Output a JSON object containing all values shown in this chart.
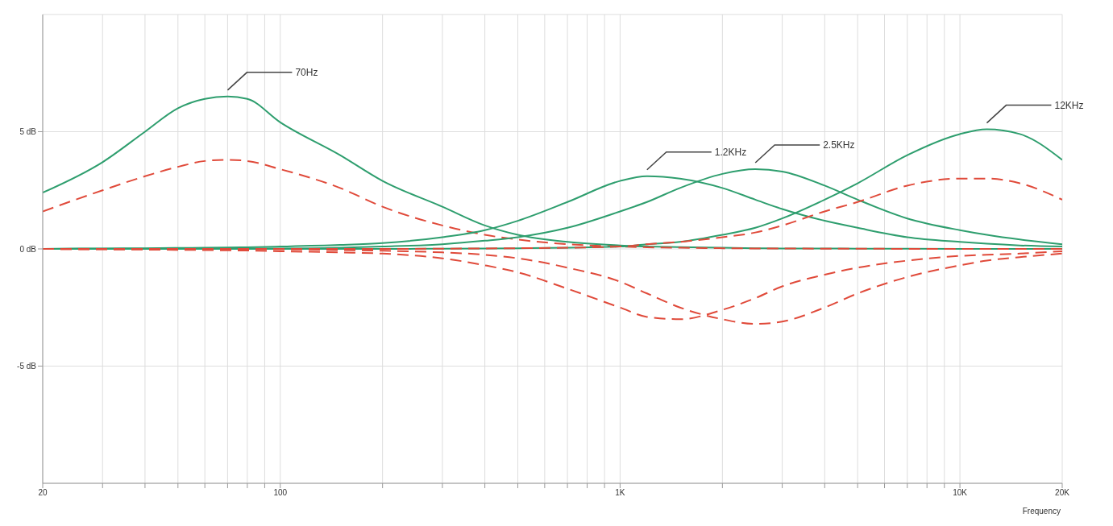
{
  "chart_data": {
    "type": "line",
    "xlabel": "Frequency",
    "log": "x",
    "grid": true,
    "marker": "none",
    "x": [
      20,
      30,
      40,
      50,
      60,
      70,
      80,
      100,
      150,
      200,
      300,
      400,
      500,
      700,
      1000,
      1200,
      1500,
      2000,
      2500,
      3000,
      4000,
      5000,
      7000,
      10000,
      12000,
      15000,
      20000
    ],
    "xlim": [
      20,
      20000
    ],
    "xticks": [
      {
        "value": 20,
        "label": "20"
      },
      {
        "value": 30,
        "label": null
      },
      {
        "value": 40,
        "label": null
      },
      {
        "value": 50,
        "label": null
      },
      {
        "value": 60,
        "label": null
      },
      {
        "value": 70,
        "label": null
      },
      {
        "value": 80,
        "label": null
      },
      {
        "value": 90,
        "label": null
      },
      {
        "value": 100,
        "label": "100"
      },
      {
        "value": 200,
        "label": null
      },
      {
        "value": 300,
        "label": null
      },
      {
        "value": 400,
        "label": null
      },
      {
        "value": 500,
        "label": null
      },
      {
        "value": 600,
        "label": null
      },
      {
        "value": 700,
        "label": null
      },
      {
        "value": 800,
        "label": null
      },
      {
        "value": 900,
        "label": null
      },
      {
        "value": 1000,
        "label": "1K"
      },
      {
        "value": 2000,
        "label": null
      },
      {
        "value": 3000,
        "label": null
      },
      {
        "value": 4000,
        "label": null
      },
      {
        "value": 5000,
        "label": null
      },
      {
        "value": 6000,
        "label": null
      },
      {
        "value": 7000,
        "label": null
      },
      {
        "value": 8000,
        "label": null
      },
      {
        "value": 9000,
        "label": null
      },
      {
        "value": 10000,
        "label": "10K"
      },
      {
        "value": 20000,
        "label": "20K"
      }
    ],
    "ylim": [
      -10,
      10
    ],
    "yticks": [
      {
        "value": -5,
        "label": "-5 dB"
      },
      {
        "value": 0,
        "label": "0 dB"
      },
      {
        "value": 5,
        "label": "5 dB"
      }
    ],
    "series": [
      {
        "color": "#2e9e6e",
        "line_style": "solid",
        "values": [
          2.4,
          3.7,
          5.0,
          6.0,
          6.4,
          6.5,
          6.4,
          5.4,
          4.0,
          2.9,
          1.8,
          1.0,
          0.6,
          0.3,
          0.15,
          0.1,
          0.08,
          0.05,
          0.03,
          0.02,
          0.02,
          0.01,
          0.01,
          0,
          0,
          0,
          0
        ]
      },
      {
        "color": "#e04a3a",
        "line_style": "dashed",
        "values": [
          1.6,
          2.5,
          3.1,
          3.5,
          3.75,
          3.8,
          3.75,
          3.4,
          2.6,
          1.8,
          1.0,
          0.6,
          0.4,
          0.2,
          0.1,
          0.07,
          0.05,
          0.03,
          0.02,
          0.02,
          0.01,
          0.01,
          0,
          0,
          0,
          0,
          0
        ]
      },
      {
        "color": "#2e9e6e",
        "line_style": "solid",
        "values": [
          0,
          0.02,
          0.03,
          0.04,
          0.05,
          0.06,
          0.07,
          0.1,
          0.17,
          0.25,
          0.5,
          0.8,
          1.2,
          2.0,
          2.9,
          3.1,
          3.0,
          2.6,
          2.1,
          1.7,
          1.2,
          0.9,
          0.5,
          0.3,
          0.22,
          0.15,
          0.1
        ]
      },
      {
        "color": "#e04a3a",
        "line_style": "dashed",
        "values": [
          0,
          -0.02,
          -0.03,
          -0.04,
          -0.05,
          -0.06,
          -0.07,
          -0.1,
          -0.15,
          -0.2,
          -0.4,
          -0.7,
          -1.0,
          -1.7,
          -2.5,
          -2.9,
          -3.0,
          -2.6,
          -2.1,
          -1.6,
          -1.1,
          -0.8,
          -0.5,
          -0.3,
          -0.25,
          -0.2,
          -0.1
        ]
      },
      {
        "color": "#2e9e6e",
        "line_style": "solid",
        "values": [
          0,
          0.01,
          0.01,
          0.02,
          0.02,
          0.02,
          0.02,
          0.02,
          0.05,
          0.1,
          0.2,
          0.35,
          0.5,
          0.9,
          1.6,
          2.0,
          2.6,
          3.2,
          3.4,
          3.3,
          2.7,
          2.1,
          1.3,
          0.8,
          0.6,
          0.4,
          0.2
        ]
      },
      {
        "color": "#e04a3a",
        "line_style": "dashed",
        "values": [
          0,
          -0.01,
          -0.01,
          -0.02,
          -0.02,
          -0.02,
          -0.02,
          -0.02,
          -0.05,
          -0.08,
          -0.15,
          -0.25,
          -0.4,
          -0.8,
          -1.4,
          -1.9,
          -2.5,
          -3.0,
          -3.2,
          -3.1,
          -2.5,
          -1.9,
          -1.2,
          -0.7,
          -0.5,
          -0.35,
          -0.2
        ]
      },
      {
        "color": "#2e9e6e",
        "line_style": "solid",
        "values": [
          0,
          0,
          0,
          0,
          0,
          0,
          0,
          0,
          0,
          0,
          0.01,
          0.02,
          0.03,
          0.05,
          0.1,
          0.2,
          0.3,
          0.6,
          0.9,
          1.3,
          2.1,
          2.8,
          4.0,
          4.9,
          5.1,
          4.9,
          3.8
        ]
      },
      {
        "color": "#e04a3a",
        "line_style": "dashed",
        "values": [
          0,
          0,
          0,
          0,
          0,
          0,
          0,
          0,
          0,
          0,
          0.01,
          0.02,
          0.03,
          0.05,
          0.1,
          0.2,
          0.3,
          0.5,
          0.7,
          1.0,
          1.6,
          2.0,
          2.7,
          3.0,
          3.0,
          2.8,
          2.1
        ]
      }
    ],
    "annotations": [
      {
        "text": "70Hz",
        "x": 70,
        "y": 6.5
      },
      {
        "text": "1.2KHz",
        "x": 1200,
        "y": 3.1
      },
      {
        "text": "2.5KHz",
        "x": 2500,
        "y": 3.4
      },
      {
        "text": "12KHz",
        "x": 12000,
        "y": 5.1
      }
    ]
  }
}
